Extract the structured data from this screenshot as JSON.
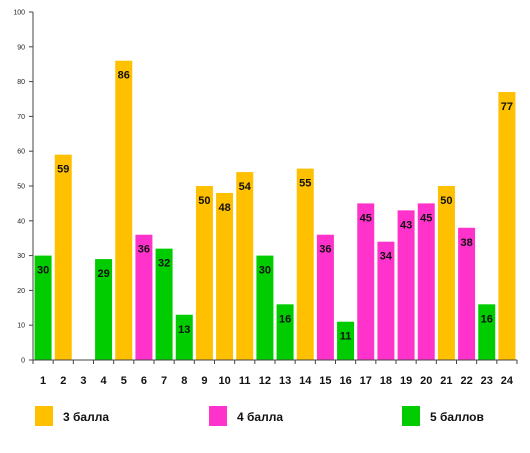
{
  "chart_data": {
    "type": "bar",
    "title": "",
    "xlabel": "",
    "ylabel": "",
    "ylim": [
      0,
      100
    ],
    "ytick_step": 10,
    "grid": false,
    "legend_position": "bottom",
    "categories": [
      "1",
      "2",
      "3",
      "4",
      "5",
      "6",
      "7",
      "8",
      "9",
      "10",
      "11",
      "12",
      "13",
      "14",
      "15",
      "16",
      "17",
      "18",
      "19",
      "20",
      "21",
      "22",
      "23",
      "24"
    ],
    "values": [
      30,
      59,
      null,
      29,
      86,
      36,
      32,
      13,
      50,
      48,
      54,
      30,
      16,
      55,
      36,
      11,
      45,
      34,
      43,
      45,
      50,
      38,
      16,
      77
    ],
    "value_labels": [
      "30",
      "59",
      "",
      "29",
      "86",
      "36",
      "32",
      "13",
      "50",
      "48",
      "54",
      "30",
      "16",
      "55",
      "36",
      "11",
      "45",
      "34",
      "43",
      "45",
      "50",
      "38",
      "16",
      "77"
    ],
    "bar_group": [
      "5 баллов",
      "3 балла",
      null,
      "5 баллов",
      "3 балла",
      "4 балла",
      "5 баллов",
      "5 баллов",
      "3 балла",
      "3 балла",
      "3 балла",
      "5 баллов",
      "5 баллов",
      "3 балла",
      "4 балла",
      "5 баллов",
      "4 балла",
      "4 балла",
      "4 балла",
      "4 балла",
      "3 балла",
      "4 балла",
      "5 баллов",
      "3 балла"
    ],
    "groups": [
      {
        "name": "3 балла",
        "color": "#FFC000"
      },
      {
        "name": "4 балла",
        "color": "#FF33CC"
      },
      {
        "name": "5 баллов",
        "color": "#00CC00"
      }
    ]
  }
}
